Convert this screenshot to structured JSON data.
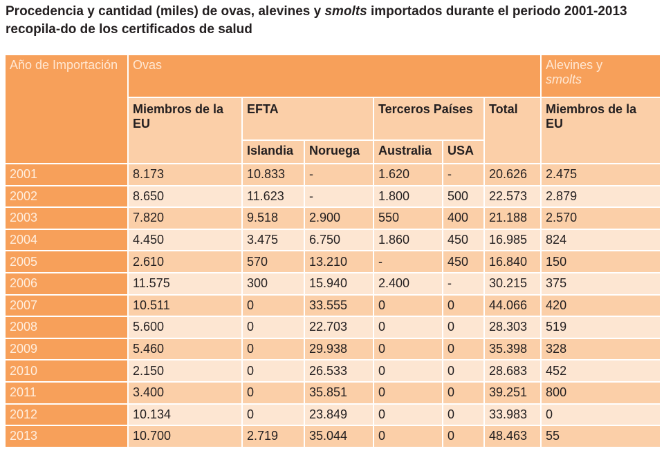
{
  "caption": {
    "part1": "Procedencia y cantidad (miles) de ovas, alevines y ",
    "smolts": "smolts",
    "part2": " importados durante el periodo 2001-2013 recopila-do de los certificados de salud"
  },
  "table": {
    "header": {
      "year": "Año de Importación",
      "ovas": "Ovas",
      "alevines_line1": "Alevines y",
      "alevines_line2": "smolts",
      "eu": "Miembros de la EU",
      "efta": "EFTA",
      "terceros": "Terceros Países",
      "total": "Total",
      "eu_alevines": "Miembros de  la EU",
      "islandia": "Islandia",
      "noruega": "Noruega",
      "australia": "Australia",
      "usa": "USA"
    },
    "rows": [
      {
        "year": "2001",
        "eu": "8.173",
        "islandia": "10.833",
        "noruega": "-",
        "australia": "1.620",
        "usa": "-",
        "total": "20.626",
        "alevines": "2.475"
      },
      {
        "year": "2002",
        "eu": "8.650",
        "islandia": "11.623",
        "noruega": "-",
        "australia": "1.800",
        "usa": "500",
        "total": "22.573",
        "alevines": "2.879"
      },
      {
        "year": "2003",
        "eu": "7.820",
        "islandia": "9.518",
        "noruega": "2.900",
        "australia": "550",
        "usa": "400",
        "total": "21.188",
        "alevines": "2.570"
      },
      {
        "year": "2004",
        "eu": "4.450",
        "islandia": "3.475",
        "noruega": "6.750",
        "australia": "1.860",
        "usa": "450",
        "total": "16.985",
        "alevines": "824"
      },
      {
        "year": "2005",
        "eu": "2.610",
        "islandia": "570",
        "noruega": "13.210",
        "australia": "-",
        "usa": "450",
        "total": "16.840",
        "alevines": "150"
      },
      {
        "year": "2006",
        "eu": "11.575",
        "islandia": "300",
        "noruega": "15.940",
        "australia": "2.400",
        "usa": "-",
        "total": "30.215",
        "alevines": "375"
      },
      {
        "year": "2007",
        "eu": "10.511",
        "islandia": "0",
        "noruega": "33.555",
        "australia": "0",
        "usa": "0",
        "total": "44.066",
        "alevines": "420"
      },
      {
        "year": "2008",
        "eu": "5.600",
        "islandia": "0",
        "noruega": "22.703",
        "australia": "0",
        "usa": "0",
        "total": "28.303",
        "alevines": "519"
      },
      {
        "year": "2009",
        "eu": "5.460",
        "islandia": "0",
        "noruega": "29.938",
        "australia": "0",
        "usa": "0",
        "total": "35.398",
        "alevines": "328"
      },
      {
        "year": "2010",
        "eu": "2.150",
        "islandia": "0",
        "noruega": "26.533",
        "australia": "0",
        "usa": "0",
        "total": "28.683",
        "alevines": "452"
      },
      {
        "year": "2011",
        "eu": "3.400",
        "islandia": "0",
        "noruega": "35.851",
        "australia": "0",
        "usa": "0",
        "total": "39.251",
        "alevines": "800"
      },
      {
        "year": "2012",
        "eu": "10.134",
        "islandia": "0",
        "noruega": "23.849",
        "australia": "0",
        "usa": "0",
        "total": "33.983",
        "alevines": "0"
      },
      {
        "year": "2013",
        "eu": "10.700",
        "islandia": "2.719",
        "noruega": "35.044",
        "australia": "0",
        "usa": "0",
        "total": "48.463",
        "alevines": "55"
      }
    ]
  }
}
